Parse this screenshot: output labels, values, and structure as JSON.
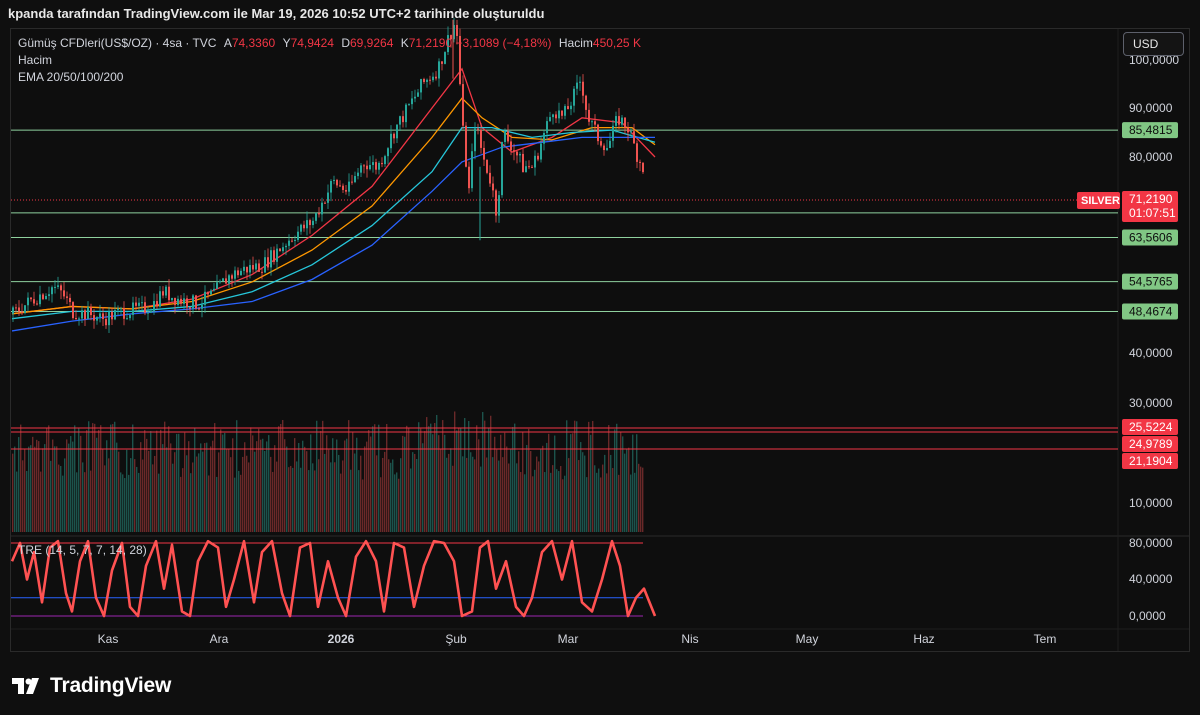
{
  "caption": "kpanda tarafından TradingView.com ile Mar 19, 2026 10:52 UTC+2 tarihinde oluşturuldu",
  "legend": {
    "symbol": "Gümüş CFDleri(US$/OZ) · 4sa · TVC",
    "open_label": "A",
    "open": "74,3360",
    "high_label": "Y",
    "high": "74,9424",
    "low_label": "D",
    "low": "69,9264",
    "close_label": "K",
    "close": "71,2190",
    "change": "−3,1089 (−4,18%)",
    "volume_label": "Hacim",
    "volume": "450,25 K",
    "line2": "Hacim",
    "line3": "EMA 20/50/100/200"
  },
  "currency_button": "USD",
  "brand": "TradingView",
  "colors": {
    "up": "#26a69a",
    "down": "#ef5350",
    "level": "#8fd19e",
    "level_tag": "#81c784",
    "ema20": "#f23645",
    "ema50": "#ff9800",
    "ema100": "#26c6da",
    "ema200": "#2962ff",
    "price_tag": "#f23645",
    "tre_line": "#ff5252",
    "tre_mid": "#2962ff",
    "tre_low": "#9c27b0"
  },
  "chart_data": {
    "type": "line",
    "title": "Gümüş CFDleri(US$/OZ) · 4sa · TVC",
    "x_ticks": [
      "Kas",
      "Ara",
      "2026",
      "Şub",
      "Mar",
      "Nis",
      "May",
      "Haz",
      "Tem"
    ],
    "y_ticks": [
      "100,0000",
      "90,0000",
      "80,0000",
      "40,0000",
      "30,0000",
      "10,0000"
    ],
    "y_ticks_hidden_behind_tags": [
      "70,0000",
      "60,0000",
      "50,0000",
      "20,0000"
    ],
    "price_range": [
      38,
      105
    ],
    "series": [
      {
        "name": "SILVER",
        "points": [
          [
            0,
            48
          ],
          [
            20,
            51
          ],
          [
            40,
            53.5
          ],
          [
            50,
            52
          ],
          [
            60,
            48.5
          ],
          [
            75,
            48
          ],
          [
            90,
            47
          ],
          [
            110,
            48.5
          ],
          [
            130,
            49
          ],
          [
            140,
            50
          ],
          [
            150,
            52.5
          ],
          [
            165,
            51
          ],
          [
            185,
            50
          ],
          [
            200,
            52
          ],
          [
            215,
            55.5
          ],
          [
            230,
            57
          ],
          [
            250,
            58
          ],
          [
            265,
            61
          ],
          [
            280,
            64
          ],
          [
            300,
            67
          ],
          [
            320,
            75
          ],
          [
            335,
            73
          ],
          [
            350,
            79
          ],
          [
            365,
            78
          ],
          [
            380,
            85
          ],
          [
            395,
            90
          ],
          [
            410,
            95
          ],
          [
            425,
            98
          ],
          [
            435,
            104
          ],
          [
            443,
            108
          ],
          [
            450,
            85
          ],
          [
            456,
            73
          ],
          [
            462,
            87
          ],
          [
            470,
            80
          ],
          [
            478,
            75
          ],
          [
            484,
            68
          ],
          [
            490,
            85
          ],
          [
            500,
            82
          ],
          [
            510,
            78
          ],
          [
            520,
            78
          ],
          [
            530,
            84
          ],
          [
            540,
            90
          ],
          [
            550,
            88
          ],
          [
            560,
            92
          ],
          [
            568,
            96
          ],
          [
            575,
            88
          ],
          [
            585,
            84
          ],
          [
            595,
            82
          ],
          [
            605,
            88
          ],
          [
            615,
            86
          ],
          [
            625,
            80
          ],
          [
            635,
            76
          ],
          [
            643,
            71.219
          ]
        ]
      }
    ],
    "ema_lines": [
      {
        "name": "EMA 20",
        "points": [
          [
            0,
            48
          ],
          [
            60,
            49.5
          ],
          [
            120,
            49
          ],
          [
            180,
            51
          ],
          [
            240,
            56
          ],
          [
            300,
            64
          ],
          [
            360,
            74
          ],
          [
            420,
            90
          ],
          [
            450,
            98
          ],
          [
            470,
            86
          ],
          [
            500,
            81
          ],
          [
            540,
            84
          ],
          [
            570,
            88
          ],
          [
            610,
            87
          ],
          [
            643,
            80
          ]
        ]
      },
      {
        "name": "EMA 50",
        "points": [
          [
            0,
            48
          ],
          [
            60,
            49.5
          ],
          [
            120,
            49
          ],
          [
            180,
            50.5
          ],
          [
            240,
            54.5
          ],
          [
            300,
            61
          ],
          [
            360,
            70
          ],
          [
            420,
            84
          ],
          [
            450,
            92
          ],
          [
            470,
            88
          ],
          [
            500,
            84
          ],
          [
            540,
            83.5
          ],
          [
            580,
            86
          ],
          [
            620,
            86
          ],
          [
            643,
            82.5
          ]
        ]
      },
      {
        "name": "EMA 100",
        "points": [
          [
            0,
            47
          ],
          [
            60,
            48.5
          ],
          [
            120,
            48.5
          ],
          [
            180,
            49.5
          ],
          [
            240,
            52.5
          ],
          [
            300,
            58
          ],
          [
            360,
            66
          ],
          [
            420,
            77
          ],
          [
            450,
            86
          ],
          [
            480,
            86
          ],
          [
            520,
            84
          ],
          [
            560,
            85
          ],
          [
            600,
            85.5
          ],
          [
            643,
            83
          ]
        ]
      },
      {
        "name": "EMA 200",
        "points": [
          [
            0,
            44.5
          ],
          [
            60,
            46.5
          ],
          [
            120,
            48
          ],
          [
            180,
            49
          ],
          [
            240,
            50.5
          ],
          [
            300,
            55
          ],
          [
            360,
            62
          ],
          [
            420,
            73
          ],
          [
            450,
            79
          ],
          [
            490,
            82
          ],
          [
            530,
            83
          ],
          [
            570,
            84
          ],
          [
            610,
            84
          ],
          [
            643,
            84
          ]
        ]
      }
    ],
    "horizontal_levels": [
      "85,4815",
      "68,5916",
      "63,5606",
      "54,5765",
      "48,4674"
    ],
    "last_price": {
      "label": "SILVER",
      "value": "71,2190",
      "countdown": "01:07:51"
    },
    "volume_panel": {
      "name": "Hacim",
      "levels": [
        "25,5224",
        "24,9789",
        "21,1904"
      ]
    },
    "indicator_panel": {
      "name": "TRE (14, 5, 7, 7, 14, 28)",
      "y_ticks": [
        "80,0000",
        "40,0000",
        "0,0000"
      ],
      "range": [
        -5,
        88
      ],
      "reference_levels": [
        80,
        20,
        0
      ],
      "points": [
        [
          0,
          60
        ],
        [
          8,
          80
        ],
        [
          15,
          40
        ],
        [
          22,
          70
        ],
        [
          30,
          15
        ],
        [
          38,
          75
        ],
        [
          46,
          82
        ],
        [
          54,
          25
        ],
        [
          60,
          5
        ],
        [
          68,
          60
        ],
        [
          76,
          82
        ],
        [
          84,
          20
        ],
        [
          92,
          0
        ],
        [
          100,
          50
        ],
        [
          110,
          80
        ],
        [
          118,
          10
        ],
        [
          126,
          0
        ],
        [
          134,
          55
        ],
        [
          144,
          82
        ],
        [
          152,
          30
        ],
        [
          160,
          78
        ],
        [
          170,
          5
        ],
        [
          178,
          0
        ],
        [
          186,
          60
        ],
        [
          196,
          82
        ],
        [
          206,
          75
        ],
        [
          214,
          10
        ],
        [
          222,
          40
        ],
        [
          232,
          82
        ],
        [
          242,
          15
        ],
        [
          250,
          70
        ],
        [
          260,
          82
        ],
        [
          270,
          25
        ],
        [
          278,
          0
        ],
        [
          288,
          75
        ],
        [
          298,
          80
        ],
        [
          306,
          10
        ],
        [
          316,
          60
        ],
        [
          326,
          20
        ],
        [
          334,
          0
        ],
        [
          344,
          65
        ],
        [
          354,
          82
        ],
        [
          364,
          60
        ],
        [
          372,
          5
        ],
        [
          382,
          80
        ],
        [
          392,
          75
        ],
        [
          402,
          10
        ],
        [
          412,
          55
        ],
        [
          422,
          82
        ],
        [
          432,
          80
        ],
        [
          442,
          60
        ],
        [
          450,
          0
        ],
        [
          460,
          5
        ],
        [
          468,
          75
        ],
        [
          476,
          82
        ],
        [
          484,
          30
        ],
        [
          494,
          60
        ],
        [
          504,
          10
        ],
        [
          512,
          0
        ],
        [
          520,
          20
        ],
        [
          530,
          70
        ],
        [
          540,
          82
        ],
        [
          550,
          40
        ],
        [
          560,
          82
        ],
        [
          570,
          15
        ],
        [
          580,
          5
        ],
        [
          590,
          40
        ],
        [
          600,
          82
        ],
        [
          608,
          55
        ],
        [
          616,
          0
        ],
        [
          624,
          20
        ],
        [
          632,
          30
        ],
        [
          643,
          0
        ]
      ]
    }
  }
}
